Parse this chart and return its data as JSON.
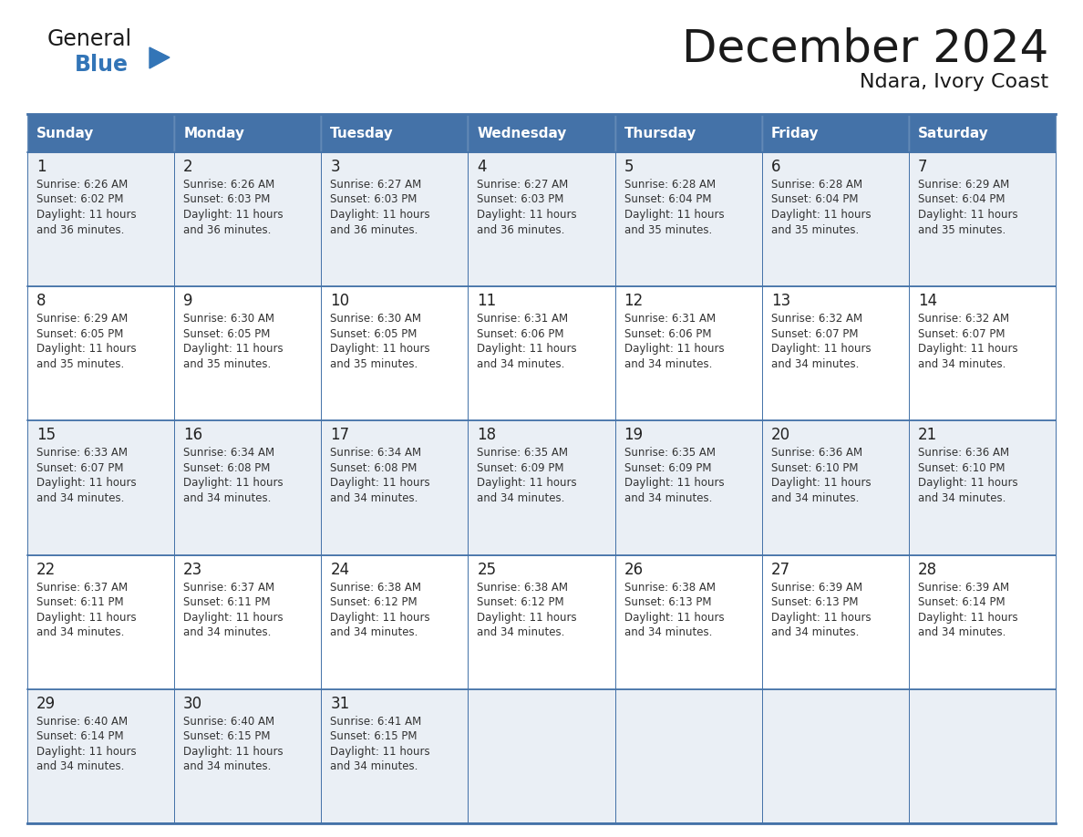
{
  "title": "December 2024",
  "subtitle": "Ndara, Ivory Coast",
  "days_of_week": [
    "Sunday",
    "Monday",
    "Tuesday",
    "Wednesday",
    "Thursday",
    "Friday",
    "Saturday"
  ],
  "header_bg": "#4472A8",
  "header_text": "#FFFFFF",
  "border_color": "#4472A8",
  "day_num_color": "#222222",
  "text_color": "#333333",
  "title_color": "#1a1a1a",
  "logo_general_color": "#1a1a1a",
  "logo_blue_color": "#3375B7",
  "row_bg_odd": "#EAEFF5",
  "row_bg_even": "#FFFFFF",
  "calendar_data": [
    [
      {
        "day": "1",
        "sunrise": "6:26 AM",
        "sunset": "6:02 PM",
        "daylight": "11 hours",
        "daylight2": "and 36 minutes."
      },
      {
        "day": "2",
        "sunrise": "6:26 AM",
        "sunset": "6:03 PM",
        "daylight": "11 hours",
        "daylight2": "and 36 minutes."
      },
      {
        "day": "3",
        "sunrise": "6:27 AM",
        "sunset": "6:03 PM",
        "daylight": "11 hours",
        "daylight2": "and 36 minutes."
      },
      {
        "day": "4",
        "sunrise": "6:27 AM",
        "sunset": "6:03 PM",
        "daylight": "11 hours",
        "daylight2": "and 36 minutes."
      },
      {
        "day": "5",
        "sunrise": "6:28 AM",
        "sunset": "6:04 PM",
        "daylight": "11 hours",
        "daylight2": "and 35 minutes."
      },
      {
        "day": "6",
        "sunrise": "6:28 AM",
        "sunset": "6:04 PM",
        "daylight": "11 hours",
        "daylight2": "and 35 minutes."
      },
      {
        "day": "7",
        "sunrise": "6:29 AM",
        "sunset": "6:04 PM",
        "daylight": "11 hours",
        "daylight2": "and 35 minutes."
      }
    ],
    [
      {
        "day": "8",
        "sunrise": "6:29 AM",
        "sunset": "6:05 PM",
        "daylight": "11 hours",
        "daylight2": "and 35 minutes."
      },
      {
        "day": "9",
        "sunrise": "6:30 AM",
        "sunset": "6:05 PM",
        "daylight": "11 hours",
        "daylight2": "and 35 minutes."
      },
      {
        "day": "10",
        "sunrise": "6:30 AM",
        "sunset": "6:05 PM",
        "daylight": "11 hours",
        "daylight2": "and 35 minutes."
      },
      {
        "day": "11",
        "sunrise": "6:31 AM",
        "sunset": "6:06 PM",
        "daylight": "11 hours",
        "daylight2": "and 34 minutes."
      },
      {
        "day": "12",
        "sunrise": "6:31 AM",
        "sunset": "6:06 PM",
        "daylight": "11 hours",
        "daylight2": "and 34 minutes."
      },
      {
        "day": "13",
        "sunrise": "6:32 AM",
        "sunset": "6:07 PM",
        "daylight": "11 hours",
        "daylight2": "and 34 minutes."
      },
      {
        "day": "14",
        "sunrise": "6:32 AM",
        "sunset": "6:07 PM",
        "daylight": "11 hours",
        "daylight2": "and 34 minutes."
      }
    ],
    [
      {
        "day": "15",
        "sunrise": "6:33 AM",
        "sunset": "6:07 PM",
        "daylight": "11 hours",
        "daylight2": "and 34 minutes."
      },
      {
        "day": "16",
        "sunrise": "6:34 AM",
        "sunset": "6:08 PM",
        "daylight": "11 hours",
        "daylight2": "and 34 minutes."
      },
      {
        "day": "17",
        "sunrise": "6:34 AM",
        "sunset": "6:08 PM",
        "daylight": "11 hours",
        "daylight2": "and 34 minutes."
      },
      {
        "day": "18",
        "sunrise": "6:35 AM",
        "sunset": "6:09 PM",
        "daylight": "11 hours",
        "daylight2": "and 34 minutes."
      },
      {
        "day": "19",
        "sunrise": "6:35 AM",
        "sunset": "6:09 PM",
        "daylight": "11 hours",
        "daylight2": "and 34 minutes."
      },
      {
        "day": "20",
        "sunrise": "6:36 AM",
        "sunset": "6:10 PM",
        "daylight": "11 hours",
        "daylight2": "and 34 minutes."
      },
      {
        "day": "21",
        "sunrise": "6:36 AM",
        "sunset": "6:10 PM",
        "daylight": "11 hours",
        "daylight2": "and 34 minutes."
      }
    ],
    [
      {
        "day": "22",
        "sunrise": "6:37 AM",
        "sunset": "6:11 PM",
        "daylight": "11 hours",
        "daylight2": "and 34 minutes."
      },
      {
        "day": "23",
        "sunrise": "6:37 AM",
        "sunset": "6:11 PM",
        "daylight": "11 hours",
        "daylight2": "and 34 minutes."
      },
      {
        "day": "24",
        "sunrise": "6:38 AM",
        "sunset": "6:12 PM",
        "daylight": "11 hours",
        "daylight2": "and 34 minutes."
      },
      {
        "day": "25",
        "sunrise": "6:38 AM",
        "sunset": "6:12 PM",
        "daylight": "11 hours",
        "daylight2": "and 34 minutes."
      },
      {
        "day": "26",
        "sunrise": "6:38 AM",
        "sunset": "6:13 PM",
        "daylight": "11 hours",
        "daylight2": "and 34 minutes."
      },
      {
        "day": "27",
        "sunrise": "6:39 AM",
        "sunset": "6:13 PM",
        "daylight": "11 hours",
        "daylight2": "and 34 minutes."
      },
      {
        "day": "28",
        "sunrise": "6:39 AM",
        "sunset": "6:14 PM",
        "daylight": "11 hours",
        "daylight2": "and 34 minutes."
      }
    ],
    [
      {
        "day": "29",
        "sunrise": "6:40 AM",
        "sunset": "6:14 PM",
        "daylight": "11 hours",
        "daylight2": "and 34 minutes."
      },
      {
        "day": "30",
        "sunrise": "6:40 AM",
        "sunset": "6:15 PM",
        "daylight": "11 hours",
        "daylight2": "and 34 minutes."
      },
      {
        "day": "31",
        "sunrise": "6:41 AM",
        "sunset": "6:15 PM",
        "daylight": "11 hours",
        "daylight2": "and 34 minutes."
      },
      null,
      null,
      null,
      null
    ]
  ],
  "figsize": [
    11.88,
    9.18
  ],
  "dpi": 100
}
